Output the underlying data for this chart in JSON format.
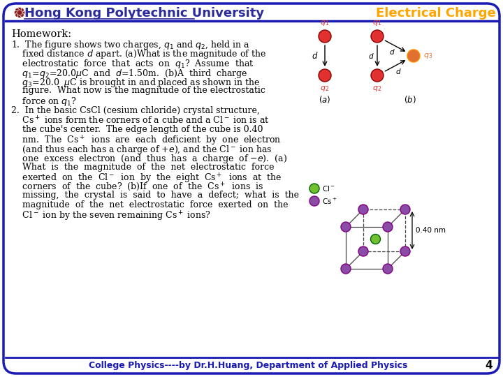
{
  "title_left": "Hong Kong Polytechnic University",
  "title_right": "Electrical Charge",
  "title_left_color": "#2B2B9B",
  "title_right_color": "#FFA500",
  "logo_color": "#8B1A1A",
  "header_line_color": "#1A1AB4",
  "bg_color": "#FFFFFF",
  "border_color": "#1A1AB4",
  "footer_text": "College Physics----by Dr.H.Huang, Department of Applied Physics",
  "footer_color": "#1A1AB4",
  "page_number": "4",
  "homework_title": "Homework:",
  "charge_color_red": "#E03030",
  "charge_color_orange": "#E07030",
  "charge_color_purple": "#8B4CA8",
  "charge_color_green": "#70C030"
}
